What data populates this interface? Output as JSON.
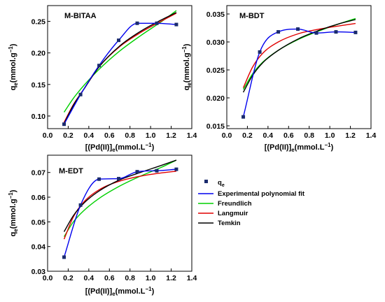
{
  "chart_data": [
    {
      "type": "scatter",
      "panel_label": "M-BITAA",
      "xlabel": "[(Pd(II)]e(mmol.L−1)",
      "ylabel": "qe(mmol.g−1)",
      "xlim": [
        0.0,
        1.4
      ],
      "ylim": [
        0.08,
        0.275
      ],
      "xticks": [
        "0.0",
        "0.2",
        "0.4",
        "0.6",
        "0.8",
        "1.0",
        "1.2",
        "1.4"
      ],
      "yticks": [
        "0.10",
        "0.15",
        "0.20",
        "0.25"
      ],
      "x": [
        0.16,
        0.32,
        0.5,
        0.69,
        0.87,
        1.06,
        1.25
      ],
      "y": [
        0.087,
        0.134,
        0.18,
        0.22,
        0.247,
        0.247,
        0.245
      ],
      "series": [
        {
          "name": "Experimental polynomial fit",
          "color": "#0000ee",
          "x": [
            0.16,
            0.32,
            0.5,
            0.69,
            0.87,
            1.06,
            1.25
          ],
          "y": [
            0.087,
            0.134,
            0.18,
            0.22,
            0.247,
            0.247,
            0.245
          ]
        },
        {
          "name": "Freundlich",
          "color": "#00d000",
          "x": [
            0.16,
            0.25,
            0.35,
            0.5,
            0.7,
            0.9,
            1.1,
            1.25
          ],
          "y": [
            0.106,
            0.128,
            0.148,
            0.174,
            0.203,
            0.227,
            0.249,
            0.267
          ]
        },
        {
          "name": "Langmuir",
          "color": "#e00000",
          "x": [
            0.16,
            0.25,
            0.35,
            0.5,
            0.7,
            0.9,
            1.1,
            1.25
          ],
          "y": [
            0.09,
            0.118,
            0.142,
            0.178,
            0.21,
            0.232,
            0.25,
            0.263
          ]
        },
        {
          "name": "Temkin",
          "color": "#000000",
          "x": [
            0.16,
            0.25,
            0.35,
            0.5,
            0.7,
            0.9,
            1.1,
            1.25
          ],
          "y": [
            0.088,
            0.117,
            0.142,
            0.178,
            0.211,
            0.234,
            0.252,
            0.264
          ]
        }
      ]
    },
    {
      "type": "scatter",
      "panel_label": "M-BDT",
      "xlabel": "[(Pd(II)]e(mmol.L−1)",
      "ylabel": "qe(mmol.g−1)",
      "xlim": [
        0.0,
        1.4
      ],
      "ylim": [
        0.0145,
        0.0365
      ],
      "xticks": [
        "0.0",
        "0.2",
        "0.4",
        "0.6",
        "0.8",
        "1.0",
        "1.2",
        "1.4"
      ],
      "yticks": [
        "0.015",
        "0.020",
        "0.025",
        "0.030",
        "0.035"
      ],
      "x": [
        0.16,
        0.32,
        0.5,
        0.69,
        0.87,
        1.06,
        1.25
      ],
      "y": [
        0.0166,
        0.0282,
        0.0318,
        0.0323,
        0.0316,
        0.0318,
        0.0317
      ],
      "series": [
        {
          "name": "Experimental polynomial fit",
          "color": "#0000ee",
          "x": [
            0.16,
            0.32,
            0.5,
            0.69,
            0.87,
            1.06,
            1.25
          ],
          "y": [
            0.0166,
            0.0282,
            0.0318,
            0.0323,
            0.0316,
            0.0318,
            0.0317
          ]
        },
        {
          "name": "Freundlich",
          "color": "#00d000",
          "x": [
            0.16,
            0.25,
            0.35,
            0.5,
            0.7,
            0.9,
            1.1,
            1.25
          ],
          "y": [
            0.0215,
            0.0243,
            0.0264,
            0.0285,
            0.0305,
            0.032,
            0.0333,
            0.0342
          ]
        },
        {
          "name": "Langmuir",
          "color": "#e00000",
          "x": [
            0.16,
            0.25,
            0.35,
            0.5,
            0.7,
            0.9,
            1.1,
            1.25
          ],
          "y": [
            0.0218,
            0.0255,
            0.028,
            0.03,
            0.0315,
            0.0323,
            0.0329,
            0.0333
          ]
        },
        {
          "name": "Temkin",
          "color": "#000000",
          "x": [
            0.16,
            0.25,
            0.35,
            0.5,
            0.7,
            0.9,
            1.1,
            1.25
          ],
          "y": [
            0.021,
            0.024,
            0.0263,
            0.0285,
            0.0306,
            0.0321,
            0.0333,
            0.034
          ]
        }
      ]
    },
    {
      "type": "scatter",
      "panel_label": "M-EDT",
      "xlabel": "[(Pd(II)]e(mmol.L−1)",
      "ylabel": "qe(mmol.g−1)",
      "xlim": [
        0.0,
        1.4
      ],
      "ylim": [
        0.03,
        0.077
      ],
      "xticks": [
        "0.0",
        "0.2",
        "0.4",
        "0.6",
        "0.8",
        "1.0",
        "1.2",
        "1.4"
      ],
      "yticks": [
        "0.03",
        "0.04",
        "0.05",
        "0.06",
        "0.07"
      ],
      "x": [
        0.16,
        0.32,
        0.5,
        0.69,
        0.87,
        1.06,
        1.25
      ],
      "y": [
        0.0357,
        0.0568,
        0.0673,
        0.0675,
        0.0703,
        0.0707,
        0.0713
      ],
      "series": [
        {
          "name": "Experimental polynomial fit",
          "color": "#0000ee",
          "x": [
            0.16,
            0.32,
            0.5,
            0.69,
            0.87,
            1.06,
            1.25
          ],
          "y": [
            0.0357,
            0.0568,
            0.0673,
            0.0675,
            0.0703,
            0.0707,
            0.0713
          ]
        },
        {
          "name": "Freundlich",
          "color": "#00d000",
          "x": [
            0.16,
            0.25,
            0.35,
            0.5,
            0.7,
            0.9,
            1.1,
            1.25
          ],
          "y": [
            0.044,
            0.05,
            0.0545,
            0.0595,
            0.0645,
            0.0685,
            0.072,
            0.075
          ]
        },
        {
          "name": "Langmuir",
          "color": "#e00000",
          "x": [
            0.16,
            0.25,
            0.35,
            0.5,
            0.7,
            0.9,
            1.1,
            1.25
          ],
          "y": [
            0.043,
            0.052,
            0.058,
            0.063,
            0.0665,
            0.0685,
            0.0698,
            0.0705
          ]
        },
        {
          "name": "Temkin",
          "color": "#000000",
          "x": [
            0.16,
            0.25,
            0.35,
            0.5,
            0.7,
            0.9,
            1.1,
            1.25
          ],
          "y": [
            0.046,
            0.0525,
            0.0575,
            0.0625,
            0.067,
            0.07,
            0.0728,
            0.075
          ]
        }
      ]
    }
  ],
  "legend": {
    "entries": [
      {
        "label": "qe",
        "kind": "marker",
        "color": "#1a2b6d"
      },
      {
        "label": "Experimental polynomial fit",
        "kind": "line",
        "color": "#0000ee"
      },
      {
        "label": "Freundlich",
        "kind": "line",
        "color": "#00d000"
      },
      {
        "label": "Langmuir",
        "kind": "line",
        "color": "#e00000"
      },
      {
        "label": "Temkin",
        "kind": "line",
        "color": "#000000"
      }
    ]
  },
  "marker_color": "#1a2b6d"
}
